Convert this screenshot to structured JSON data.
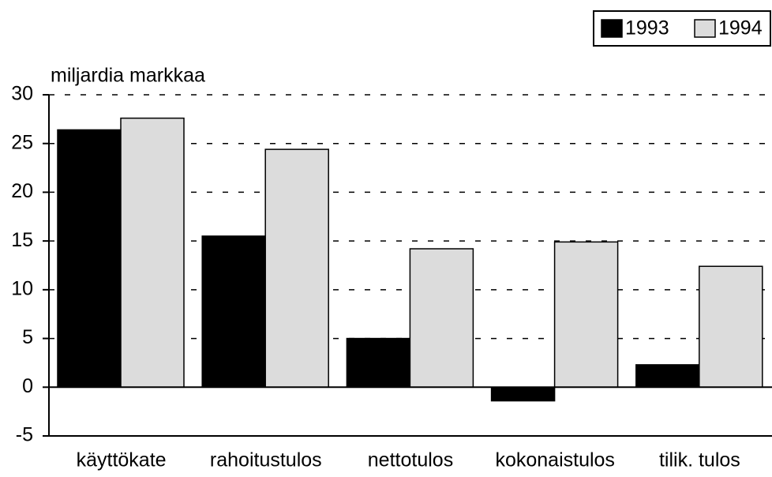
{
  "chart_data": {
    "type": "bar",
    "y_label": "miljardia markkaa",
    "categories": [
      "käyttökate",
      "rahoitustulos",
      "nettotulos",
      "kokonaistulos",
      "tilik. tulos"
    ],
    "series": [
      {
        "name": "1993",
        "color": "#000000",
        "values": [
          26.4,
          15.5,
          5.0,
          -1.4,
          2.3
        ]
      },
      {
        "name": "1994",
        "color": "#dcdcdc",
        "values": [
          27.6,
          24.4,
          14.2,
          14.9,
          12.4
        ]
      }
    ],
    "ylim": [
      -5,
      30
    ],
    "yticks": [
      -5,
      0,
      5,
      10,
      15,
      20,
      25,
      30
    ],
    "grid": true,
    "legend": "top-right"
  }
}
